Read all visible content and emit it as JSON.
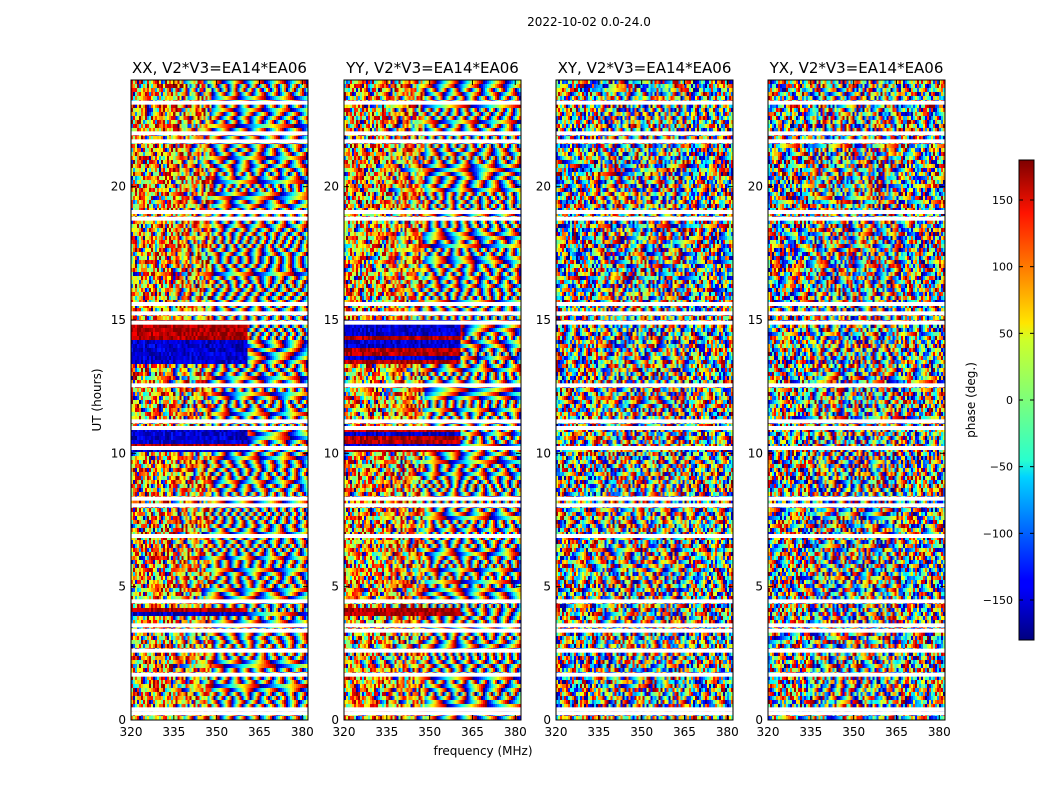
{
  "chart_data": {
    "type": "heatmap",
    "suptitle": "2022-10-02 0.0-24.0",
    "xlabel": "frequency (MHz)",
    "ylabel": "UT (hours)",
    "xlim": [
      320,
      382
    ],
    "ylim": [
      0,
      24
    ],
    "xticks": [
      320,
      335,
      350,
      365,
      380
    ],
    "yticks": [
      0,
      5,
      10,
      15,
      20
    ],
    "panels": [
      {
        "title": "XX, V2*V3=EA14*EA06"
      },
      {
        "title": "YY, V2*V3=EA14*EA06"
      },
      {
        "title": "XY, V2*V3=EA14*EA06"
      },
      {
        "title": "YX, V2*V3=EA14*EA06"
      }
    ],
    "colorbar": {
      "label": "phase (deg.)",
      "range": [
        -180,
        180
      ],
      "ticks": [
        150,
        100,
        50,
        0,
        -50,
        -100,
        -150
      ],
      "tick_labels": [
        "150",
        "100",
        "50",
        "0",
        "−50",
        "−100",
        "−150"
      ],
      "colormap": "jet"
    },
    "flagged_hours": [
      0.25,
      0.4,
      1.7,
      2.6,
      3.35,
      3.55,
      4.45,
      6.9,
      8.05,
      8.3,
      10.2,
      10.95,
      11.2,
      12.55,
      14.9,
      15.25,
      15.6,
      18.8,
      19.05,
      21.7,
      22.0,
      23.15
    ]
  }
}
